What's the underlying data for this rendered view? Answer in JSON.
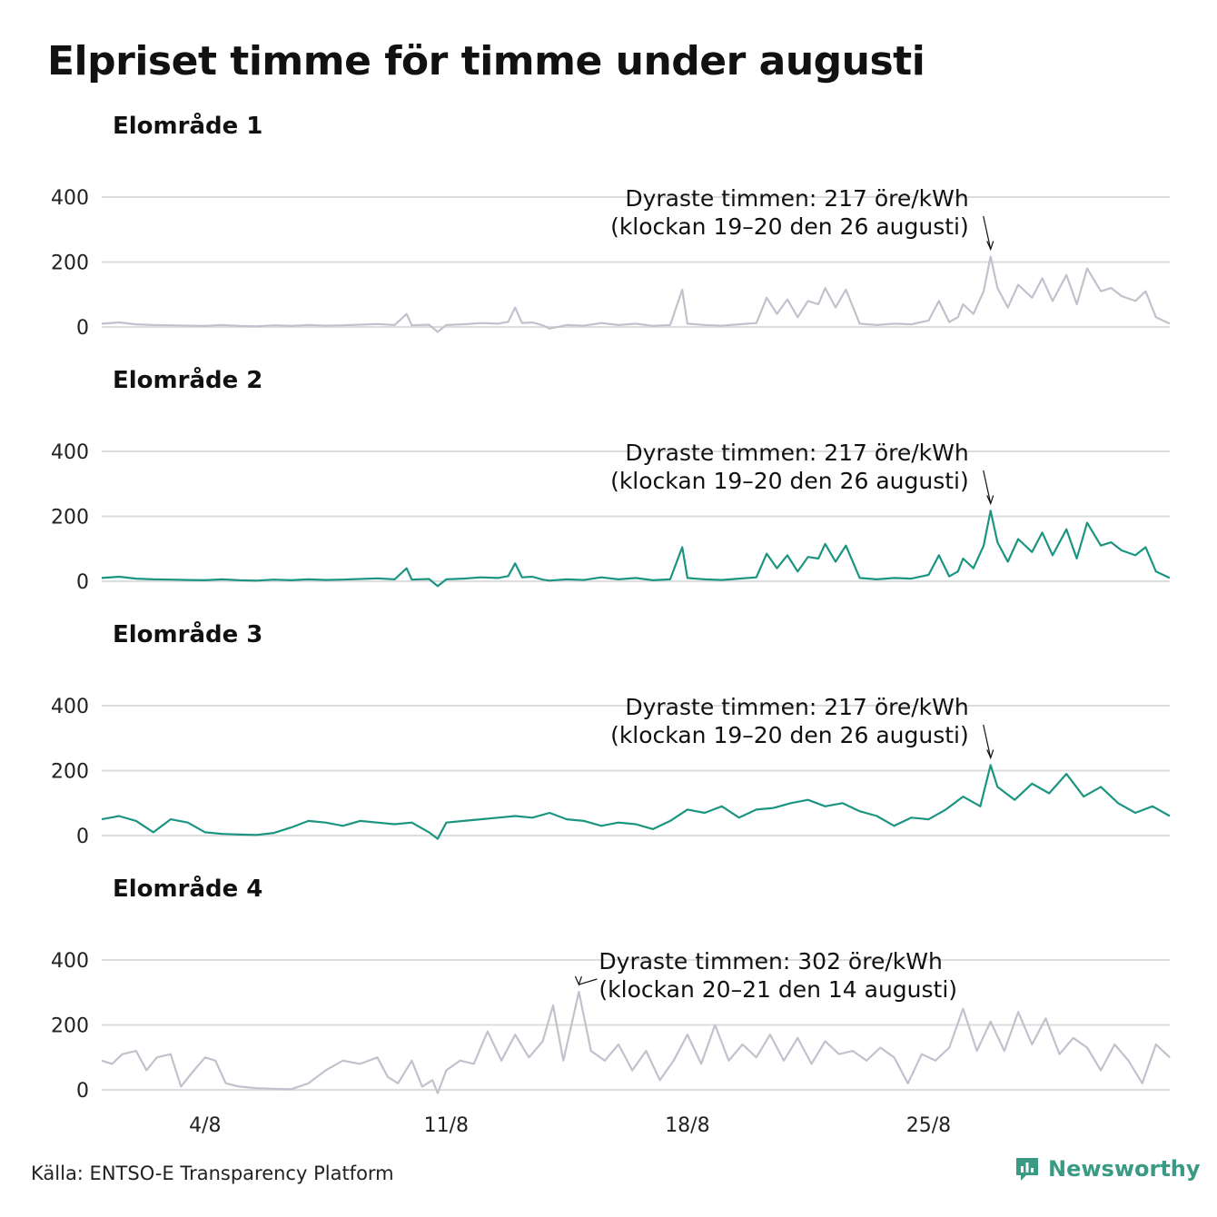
{
  "title": "Elpriset timme för timme under augusti",
  "source": "Källa: ENTSO-E Transparency Platform",
  "brand": "Newsworthy",
  "colors": {
    "accent": "#1b9580",
    "muted": "#c2c1cd",
    "grid": "#dddddd",
    "brand": "#3a9a84"
  },
  "chart_data": [
    {
      "type": "line",
      "title": "Elområde 1",
      "xlabel": "",
      "ylabel": "",
      "ylim": [
        0,
        400
      ],
      "yticks": [
        0,
        200,
        400
      ],
      "xlim": [
        1,
        32
      ],
      "xticks": [
        {
          "day": 4,
          "label": "4/8"
        },
        {
          "day": 11,
          "label": "11/8"
        },
        {
          "day": 18,
          "label": "18/8"
        },
        {
          "day": 25,
          "label": "25/8"
        }
      ],
      "color": "muted",
      "annotation": {
        "line1": "Dyraste timmen: 217 öre/kWh",
        "line2": "(klockan 19–20 den 26 augusti)",
        "day": 26.8,
        "value": 217
      },
      "series": [
        {
          "x": [
            1,
            1.5,
            2,
            2.5,
            3,
            3.5,
            4,
            4.5,
            5,
            5.5,
            6,
            6.5,
            7,
            7.5,
            8,
            8.5,
            9,
            9.5,
            9.85,
            10,
            10.5,
            10.75,
            11,
            11.5,
            12,
            12.5,
            12.8,
            13,
            13.2,
            13.5,
            13.8,
            14,
            14.5,
            15,
            15.5,
            16,
            16.5,
            17,
            17.5,
            17.85,
            18,
            18.5,
            19,
            19.5,
            20,
            20.3,
            20.6,
            20.9,
            21.2,
            21.5,
            21.8,
            22,
            22.3,
            22.6,
            23,
            23.5,
            24,
            24.5,
            25,
            25.3,
            25.6,
            25.85,
            26,
            26.3,
            26.6,
            26.8,
            27,
            27.3,
            27.6,
            28,
            28.3,
            28.6,
            29,
            29.3,
            29.6,
            30,
            30.3,
            30.6,
            31,
            31.3,
            31.6,
            32
          ],
          "y": [
            10,
            14,
            8,
            6,
            5,
            4,
            3,
            6,
            3,
            2,
            5,
            3,
            6,
            4,
            5,
            7,
            9,
            6,
            40,
            5,
            7,
            -15,
            6,
            8,
            12,
            10,
            16,
            60,
            12,
            14,
            5,
            -5,
            6,
            4,
            12,
            6,
            10,
            3,
            6,
            115,
            10,
            6,
            4,
            8,
            12,
            90,
            40,
            85,
            30,
            80,
            70,
            120,
            60,
            115,
            10,
            6,
            10,
            8,
            20,
            80,
            15,
            30,
            70,
            40,
            110,
            217,
            120,
            60,
            130,
            90,
            150,
            80,
            160,
            70,
            180,
            110,
            120,
            95,
            80,
            110,
            30,
            10
          ]
        }
      ]
    },
    {
      "type": "line",
      "title": "Elområde 2",
      "xlabel": "",
      "ylabel": "",
      "ylim": [
        0,
        400
      ],
      "yticks": [
        0,
        200,
        400
      ],
      "xlim": [
        1,
        32
      ],
      "xticks": [
        {
          "day": 4,
          "label": "4/8"
        },
        {
          "day": 11,
          "label": "11/8"
        },
        {
          "day": 18,
          "label": "18/8"
        },
        {
          "day": 25,
          "label": "25/8"
        }
      ],
      "color": "accent",
      "annotation": {
        "line1": "Dyraste timmen: 217 öre/kWh",
        "line2": "(klockan 19–20 den 26 augusti)",
        "day": 26.8,
        "value": 217
      },
      "series": [
        {
          "x": [
            1,
            1.5,
            2,
            2.5,
            3,
            3.5,
            4,
            4.5,
            5,
            5.5,
            6,
            6.5,
            7,
            7.5,
            8,
            8.5,
            9,
            9.5,
            9.85,
            10,
            10.5,
            10.75,
            11,
            11.5,
            12,
            12.5,
            12.8,
            13,
            13.2,
            13.5,
            13.8,
            14,
            14.5,
            15,
            15.5,
            16,
            16.5,
            17,
            17.5,
            17.85,
            18,
            18.5,
            19,
            19.5,
            20,
            20.3,
            20.6,
            20.9,
            21.2,
            21.5,
            21.8,
            22,
            22.3,
            22.6,
            23,
            23.5,
            24,
            24.5,
            25,
            25.3,
            25.6,
            25.85,
            26,
            26.3,
            26.6,
            26.8,
            27,
            27.3,
            27.6,
            28,
            28.3,
            28.6,
            29,
            29.3,
            29.6,
            30,
            30.3,
            30.6,
            31,
            31.3,
            31.6,
            32
          ],
          "y": [
            10,
            14,
            8,
            6,
            5,
            4,
            3,
            6,
            3,
            2,
            5,
            3,
            6,
            4,
            5,
            7,
            9,
            6,
            40,
            5,
            7,
            -15,
            6,
            8,
            12,
            10,
            16,
            55,
            12,
            14,
            5,
            2,
            6,
            4,
            12,
            6,
            10,
            3,
            6,
            105,
            10,
            6,
            4,
            8,
            12,
            85,
            40,
            80,
            30,
            75,
            70,
            115,
            60,
            110,
            10,
            6,
            10,
            8,
            20,
            80,
            15,
            30,
            70,
            40,
            110,
            217,
            120,
            60,
            130,
            90,
            150,
            80,
            160,
            70,
            180,
            110,
            120,
            95,
            80,
            105,
            30,
            10
          ]
        }
      ]
    },
    {
      "type": "line",
      "title": "Elområde 3",
      "xlabel": "",
      "ylabel": "",
      "ylim": [
        0,
        400
      ],
      "yticks": [
        0,
        200,
        400
      ],
      "xlim": [
        1,
        32
      ],
      "xticks": [
        {
          "day": 4,
          "label": "4/8"
        },
        {
          "day": 11,
          "label": "11/8"
        },
        {
          "day": 18,
          "label": "18/8"
        },
        {
          "day": 25,
          "label": "25/8"
        }
      ],
      "color": "accent",
      "annotation": {
        "line1": "Dyraste timmen: 217 öre/kWh",
        "line2": "(klockan 19–20 den 26 augusti)",
        "day": 26.8,
        "value": 217
      },
      "series": [
        {
          "x": [
            1,
            1.5,
            2,
            2.5,
            3,
            3.5,
            4,
            4.5,
            5,
            5.5,
            6,
            6.5,
            7,
            7.5,
            8,
            8.5,
            9,
            9.5,
            10,
            10.5,
            10.75,
            11,
            11.5,
            12,
            12.5,
            13,
            13.5,
            14,
            14.5,
            15,
            15.5,
            16,
            16.5,
            17,
            17.5,
            18,
            18.5,
            19,
            19.5,
            20,
            20.5,
            21,
            21.5,
            22,
            22.5,
            23,
            23.5,
            24,
            24.5,
            25,
            25.5,
            26,
            26.5,
            26.8,
            27,
            27.5,
            28,
            28.5,
            29,
            29.5,
            30,
            30.5,
            31,
            31.5,
            32
          ],
          "y": [
            50,
            60,
            45,
            10,
            50,
            40,
            10,
            5,
            3,
            2,
            8,
            25,
            45,
            40,
            30,
            45,
            40,
            35,
            40,
            10,
            -10,
            40,
            45,
            50,
            55,
            60,
            55,
            70,
            50,
            45,
            30,
            40,
            35,
            20,
            45,
            80,
            70,
            90,
            55,
            80,
            85,
            100,
            110,
            90,
            100,
            75,
            60,
            30,
            55,
            50,
            80,
            120,
            90,
            217,
            150,
            110,
            160,
            130,
            190,
            120,
            150,
            100,
            70,
            90,
            60
          ]
        }
      ]
    },
    {
      "type": "line",
      "title": "Elområde 4",
      "xlabel": "",
      "ylabel": "",
      "ylim": [
        0,
        400
      ],
      "yticks": [
        0,
        200,
        400
      ],
      "xlim": [
        1,
        32
      ],
      "xticks": [
        {
          "day": 4,
          "label": "4/8"
        },
        {
          "day": 11,
          "label": "11/8"
        },
        {
          "day": 18,
          "label": "18/8"
        },
        {
          "day": 25,
          "label": "25/8"
        }
      ],
      "color": "muted",
      "annotation": {
        "line1": "Dyraste timmen: 302 öre/kWh",
        "line2": "(klockan 20–21 den 14 augusti)",
        "day": 14.85,
        "value": 302
      },
      "series": [
        {
          "x": [
            1,
            1.3,
            1.6,
            2,
            2.3,
            2.6,
            3,
            3.3,
            3.6,
            4,
            4.3,
            4.6,
            5,
            5.5,
            6,
            6.5,
            7,
            7.5,
            8,
            8.5,
            9,
            9.3,
            9.6,
            10,
            10.3,
            10.6,
            10.75,
            11,
            11.4,
            11.8,
            12.2,
            12.6,
            13,
            13.4,
            13.8,
            14.1,
            14.4,
            14.85,
            15.2,
            15.6,
            16,
            16.4,
            16.8,
            17.2,
            17.6,
            18,
            18.4,
            18.8,
            19.2,
            19.6,
            20,
            20.4,
            20.8,
            21.2,
            21.6,
            22,
            22.4,
            22.8,
            23.2,
            23.6,
            24,
            24.4,
            24.8,
            25.2,
            25.6,
            26,
            26.4,
            26.8,
            27.2,
            27.6,
            28,
            28.4,
            28.8,
            29.2,
            29.6,
            30,
            30.4,
            30.8,
            31.2,
            31.6,
            32
          ],
          "y": [
            90,
            80,
            110,
            120,
            60,
            100,
            110,
            10,
            50,
            100,
            90,
            20,
            10,
            5,
            3,
            2,
            20,
            60,
            90,
            80,
            100,
            40,
            20,
            90,
            10,
            30,
            -10,
            60,
            90,
            80,
            180,
            90,
            170,
            100,
            150,
            260,
            90,
            302,
            120,
            90,
            140,
            60,
            120,
            30,
            90,
            170,
            80,
            200,
            90,
            140,
            100,
            170,
            90,
            160,
            80,
            150,
            110,
            120,
            90,
            130,
            100,
            20,
            110,
            90,
            130,
            250,
            120,
            210,
            120,
            240,
            140,
            220,
            110,
            160,
            130,
            60,
            140,
            90,
            20,
            140,
            100
          ]
        }
      ]
    }
  ]
}
